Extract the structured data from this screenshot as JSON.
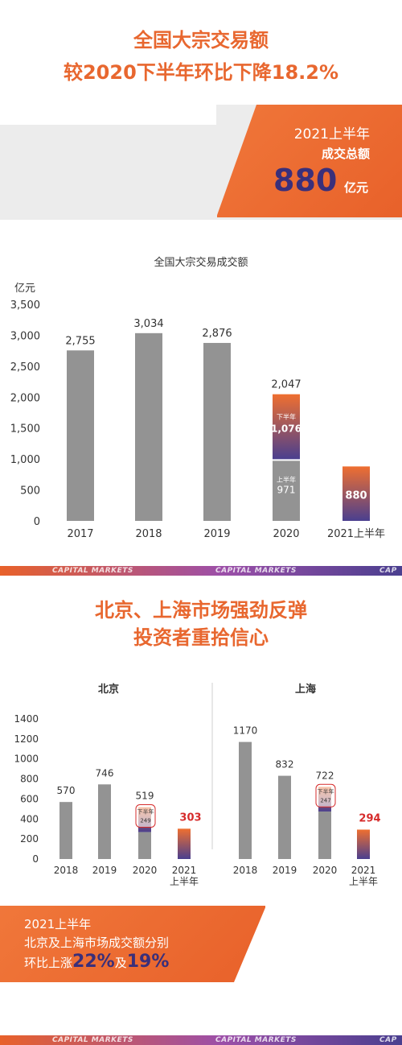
{
  "header": {
    "title_line1": "全国大宗交易额",
    "title_line2": "较2020下半年环比下降18.2%"
  },
  "badge": {
    "line1": "2021上半年",
    "line2": "成交总额",
    "value": "880",
    "unit": "亿元"
  },
  "chart_data": [
    {
      "type": "bar",
      "title": "全国大宗交易成交额",
      "ylabel": "亿元",
      "ylim": [
        0,
        3500
      ],
      "yticks": [
        "0",
        "500",
        "1,000",
        "1,500",
        "2,000",
        "2,500",
        "3,000",
        "3,500"
      ],
      "categories": [
        "2017",
        "2018",
        "2019",
        "2020",
        "2021上半年"
      ],
      "values": [
        2755,
        3034,
        2876,
        2047,
        880
      ],
      "value_labels": [
        "2,755",
        "3,034",
        "2,876",
        "2,047",
        "880"
      ],
      "split_2020": {
        "first_half_label": "上半年",
        "first_half_value": 971,
        "first_half_text": "971",
        "second_half_label": "下半年",
        "second_half_value": 1076,
        "second_half_text": "1,076"
      }
    },
    {
      "type": "bar",
      "title": "北京",
      "ylim": [
        0,
        1400
      ],
      "yticks": [
        "0",
        "200",
        "400",
        "600",
        "800",
        "1000",
        "1200",
        "1400"
      ],
      "categories": [
        "2018",
        "2019",
        "2020",
        "2021\n上半年"
      ],
      "values": [
        570,
        746,
        519,
        303
      ],
      "value_labels": [
        "570",
        "746",
        "519",
        "303"
      ],
      "second_half_2020": 249,
      "second_half_label": "下半年"
    },
    {
      "type": "bar",
      "title": "上海",
      "ylim": [
        0,
        1400
      ],
      "categories": [
        "2018",
        "2019",
        "2020",
        "2021\n上半年"
      ],
      "values": [
        1170,
        832,
        722,
        294
      ],
      "value_labels": [
        "1170",
        "832",
        "722",
        "294"
      ],
      "second_half_2020": 247,
      "second_half_label": "下半年"
    }
  ],
  "section2": {
    "title_line1": "北京、上海市场强劲反弹",
    "title_line2": "投资者重拾信心"
  },
  "summary": {
    "line1": "2021上半年",
    "line2": "北京及上海市场成交额分别",
    "line3_prefix": "环比上涨",
    "pct1": "22%",
    "mid": "及",
    "pct2": "19%"
  },
  "strip_text": "CAPITAL MARKETS",
  "strip_text_cut": "CAP",
  "colors": {
    "orange": "#e8672f",
    "grey_bar": "#939393",
    "purple": "#4a3f8f",
    "red": "#d62b2b"
  }
}
